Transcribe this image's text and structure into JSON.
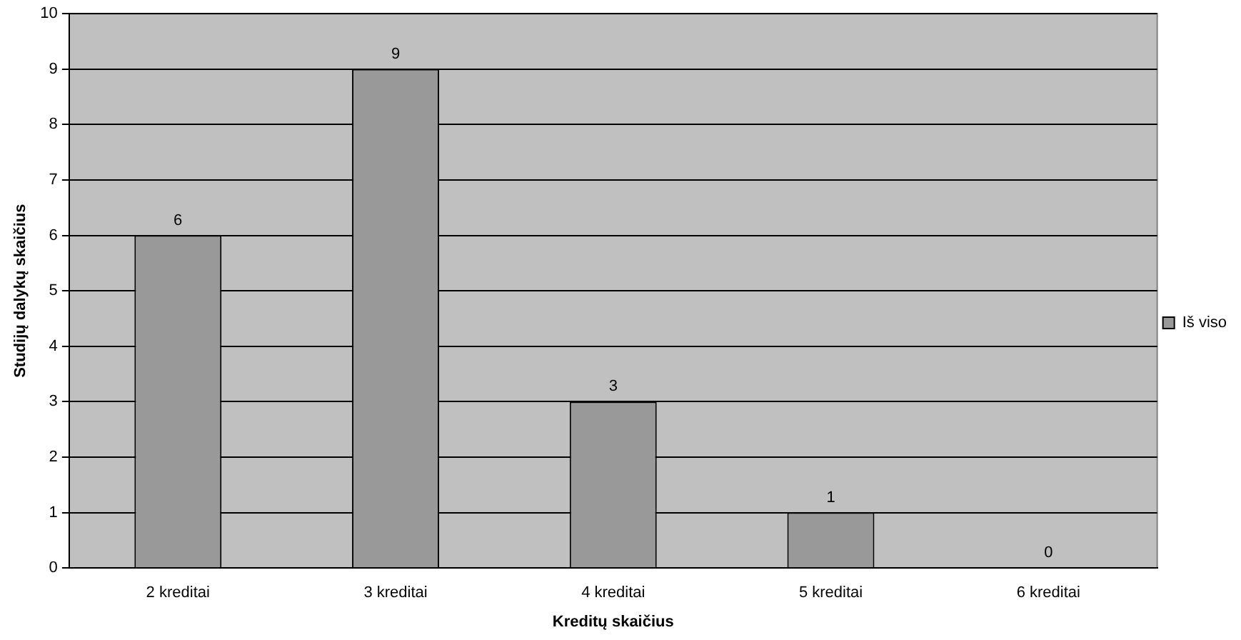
{
  "chart_data": {
    "type": "bar",
    "xlabel": "Kreditų skaičius",
    "ylabel": "Studijų dalykų skaičius",
    "categories": [
      "2 kreditai",
      "3 kreditai",
      "4 kreditai",
      "5 kreditai",
      "6 kreditai"
    ],
    "series": [
      {
        "name": "Iš viso",
        "color": "#999999",
        "values": [
          6,
          9,
          3,
          1,
          0
        ]
      }
    ],
    "ylim": [
      0,
      10
    ],
    "yticks": [
      0,
      1,
      2,
      3,
      4,
      5,
      6,
      7,
      8,
      9,
      10
    ],
    "grid": "y",
    "legend": "right",
    "data_labels": true
  }
}
